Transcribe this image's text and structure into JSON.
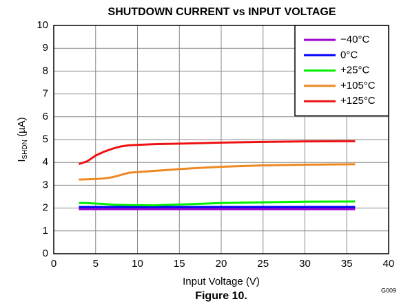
{
  "chart_data": {
    "type": "line",
    "title": "SHUTDOWN CURRENT vs INPUT VOLTAGE",
    "xlabel": "Input Voltage (V)",
    "ylabel": {
      "main": "I",
      "sub": "SHDN",
      "rest": " (µA)"
    },
    "caption": "Figure 10.",
    "figure_id": "G009",
    "x": [
      3,
      4,
      5,
      6,
      7,
      8,
      9,
      12,
      16,
      20,
      25,
      30,
      36
    ],
    "series": [
      {
        "name": "−40°C",
        "color": "#9900cc",
        "values": [
          1.95,
          1.95,
          1.95,
          1.95,
          1.95,
          1.95,
          1.95,
          1.95,
          1.95,
          1.95,
          1.95,
          1.95,
          1.95
        ]
      },
      {
        "name": "0°C",
        "color": "#0000ff",
        "values": [
          2.05,
          2.05,
          2.05,
          2.05,
          2.05,
          2.05,
          2.05,
          2.05,
          2.05,
          2.05,
          2.05,
          2.05,
          2.05
        ]
      },
      {
        "name": "+25°C",
        "color": "#00ee00",
        "values": [
          2.22,
          2.22,
          2.2,
          2.18,
          2.15,
          2.14,
          2.13,
          2.12,
          2.17,
          2.22,
          2.25,
          2.28,
          2.29
        ]
      },
      {
        "name": "+105°C",
        "color": "#ee8822",
        "values": [
          3.25,
          3.26,
          3.27,
          3.3,
          3.35,
          3.45,
          3.55,
          3.63,
          3.73,
          3.81,
          3.87,
          3.9,
          3.92
        ]
      },
      {
        "name": "+125°C",
        "color": "#ee1111",
        "values": [
          3.93,
          4.05,
          4.3,
          4.47,
          4.6,
          4.7,
          4.75,
          4.8,
          4.83,
          4.87,
          4.9,
          4.92,
          4.93
        ]
      }
    ],
    "xlim": [
      0,
      40
    ],
    "xticks": [
      0,
      5,
      10,
      15,
      20,
      25,
      30,
      35,
      40
    ],
    "ylim": [
      0,
      10
    ],
    "yticks": [
      0,
      1,
      2,
      3,
      4,
      5,
      6,
      7,
      8,
      9,
      10
    ],
    "grid": true,
    "legend": "upper right"
  }
}
